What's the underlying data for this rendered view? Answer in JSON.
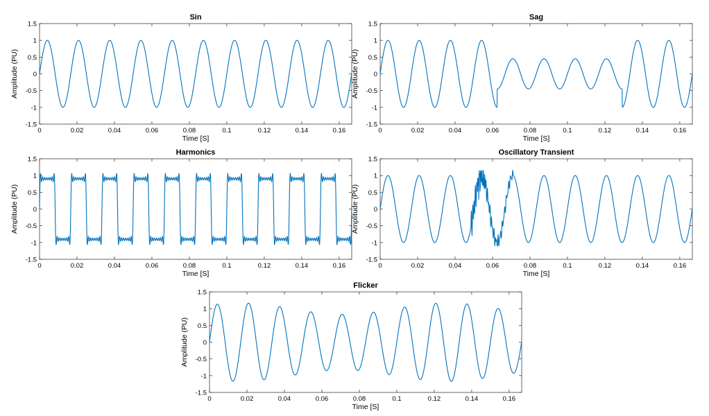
{
  "figure": {
    "line_color": "#0072BD",
    "axis_color": "#262626"
  },
  "chart_data": [
    {
      "type": "line",
      "title": "Sin",
      "xlabel": "Time [S]",
      "ylabel": "Amplitude (PU)",
      "xlim": [
        0,
        0.1667
      ],
      "ylim": [
        -1.5,
        1.5
      ],
      "xticks": [
        0,
        0.02,
        0.04,
        0.06,
        0.08,
        0.1,
        0.12,
        0.14,
        0.16
      ],
      "xtick_labels": [
        "0",
        "0.02",
        "0.04",
        "0.06",
        "0.08",
        "0.1",
        "0.12",
        "0.14",
        "0.16"
      ],
      "yticks": [
        -1.5,
        -1,
        -0.5,
        0,
        0.5,
        1,
        1.5
      ],
      "ytick_labels": [
        "-1.5",
        "-1",
        "-0.5",
        "0",
        "0.5",
        "1",
        "1.5"
      ],
      "grid": false,
      "series": [
        {
          "signal": "sine",
          "frequency_hz": 60,
          "amplitude_pu": 1.0
        }
      ]
    },
    {
      "type": "line",
      "title": "Sag",
      "xlabel": "Time [S]",
      "ylabel": "Amplitude (PU)",
      "xlim": [
        0,
        0.1667
      ],
      "ylim": [
        -1.5,
        1.5
      ],
      "xticks": [
        0,
        0.02,
        0.04,
        0.06,
        0.08,
        0.1,
        0.12,
        0.14,
        0.16
      ],
      "xtick_labels": [
        "0",
        "0.02",
        "0.04",
        "0.06",
        "0.08",
        "0.1",
        "0.12",
        "0.14",
        "0.16"
      ],
      "yticks": [
        -1.5,
        -1,
        -0.5,
        0,
        0.5,
        1,
        1.5
      ],
      "ytick_labels": [
        "-1.5",
        "-1",
        "-0.5",
        "0",
        "0.5",
        "1",
        "1.5"
      ],
      "grid": false,
      "series": [
        {
          "signal": "sag",
          "frequency_hz": 60,
          "amplitude_pu": 1.0,
          "sag_start_s": 0.0625,
          "sag_end_s": 0.1292,
          "sag_amplitude_pu": 0.45
        }
      ]
    },
    {
      "type": "line",
      "title": "Harmonics",
      "xlabel": "Time [S]",
      "ylabel": "Amplitude (PU)",
      "xlim": [
        0,
        0.1667
      ],
      "ylim": [
        -1.5,
        1.5
      ],
      "xticks": [
        0,
        0.02,
        0.04,
        0.06,
        0.08,
        0.1,
        0.12,
        0.14,
        0.16
      ],
      "xtick_labels": [
        "0",
        "0.02",
        "0.04",
        "0.06",
        "0.08",
        "0.1",
        "0.12",
        "0.14",
        "0.16"
      ],
      "yticks": [
        -1.5,
        -1,
        -0.5,
        0,
        0.5,
        1,
        1.5
      ],
      "ytick_labels": [
        "-1.5",
        "-1",
        "-0.5",
        "0",
        "0.5",
        "1",
        "1.5"
      ],
      "grid": false,
      "series": [
        {
          "signal": "harmonics",
          "frequency_hz": 60,
          "amplitude_pu": 1.0,
          "harmonic_orders": [
            3,
            5,
            7,
            9,
            11,
            13,
            15
          ],
          "harmonic_amplitudes_pu": [
            0.333,
            0.2,
            0.143,
            0.111,
            0.091,
            0.077,
            0.067
          ]
        }
      ]
    },
    {
      "type": "line",
      "title": "Oscillatory Transient",
      "xlabel": "Time [S]",
      "ylabel": "Amplitude (PU)",
      "xlim": [
        0,
        0.1667
      ],
      "ylim": [
        -1.5,
        1.5
      ],
      "xticks": [
        0,
        0.02,
        0.04,
        0.06,
        0.08,
        0.1,
        0.12,
        0.14,
        0.16
      ],
      "xtick_labels": [
        "0",
        "0.02",
        "0.04",
        "0.06",
        "0.08",
        "0.1",
        "0.12",
        "0.14",
        "0.16"
      ],
      "yticks": [
        -1.5,
        -1,
        -0.5,
        0,
        0.5,
        1,
        1.5
      ],
      "ytick_labels": [
        "-1.5",
        "-1",
        "-0.5",
        "0",
        "0.5",
        "1",
        "1.5"
      ],
      "grid": false,
      "series": [
        {
          "signal": "transient",
          "frequency_hz": 60,
          "amplitude_pu": 1.0,
          "transient_start_s": 0.0485,
          "transient_end_s": 0.071,
          "transient_peak_pu": 1.15,
          "transient_min_pu": -1.1
        }
      ]
    },
    {
      "type": "line",
      "title": "Flicker",
      "xlabel": "Time [S]",
      "ylabel": "Amplitude (PU)",
      "xlim": [
        0,
        0.1667
      ],
      "ylim": [
        -1.5,
        1.5
      ],
      "xticks": [
        0,
        0.02,
        0.04,
        0.06,
        0.08,
        0.1,
        0.12,
        0.14,
        0.16
      ],
      "xtick_labels": [
        "0",
        "0.02",
        "0.04",
        "0.06",
        "0.08",
        "0.1",
        "0.12",
        "0.14",
        "0.16"
      ],
      "yticks": [
        -1.5,
        -1,
        -0.5,
        0,
        0.5,
        1,
        1.5
      ],
      "ytick_labels": [
        "-1.5",
        "-1",
        "-0.5",
        "0",
        "0.5",
        "1",
        "1.5"
      ],
      "grid": false,
      "series": [
        {
          "signal": "flicker",
          "frequency_hz": 60,
          "amplitude_pu": 1.0,
          "modulation_depth_pu": 0.17,
          "modulation_frequency_hz": 9
        }
      ]
    }
  ]
}
